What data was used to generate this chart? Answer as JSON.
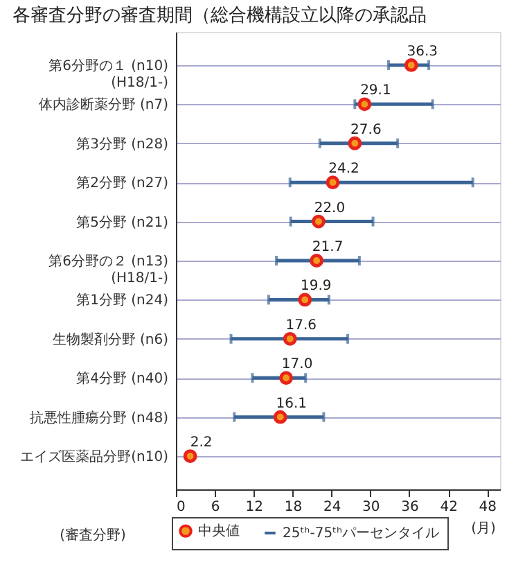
{
  "chart_data": {
    "type": "scatter",
    "title": "各審査分野の審査期間（総合機構設立以降の承認品",
    "categories": [
      "第6分野の１ (n10)\n(H18/1-)",
      "体内診断薬分野 (n7)",
      "第3分野 (n28)",
      "第2分野 (n27)",
      "第5分野 (n21)",
      "第6分野の２ (n13)\n(H18/1-)",
      "第1分野 (n24)",
      "生物製剤分野 (n6)",
      "第4分野 (n40)",
      "抗悪性腫瘍分野 (n48)",
      "エイズ医薬品分野(n10)"
    ],
    "orientation": "horizontal",
    "series": [
      {
        "name": "中央値",
        "color": "#e8231b",
        "values": [
          36.3,
          29.1,
          27.6,
          24.2,
          22.0,
          21.7,
          19.9,
          17.6,
          17.0,
          16.1,
          2.2
        ],
        "value_labels": [
          "36.3",
          "29.1",
          "27.6",
          "24.2",
          "22.0",
          "21.7",
          "19.9",
          "17.6",
          "17.0",
          "16.1",
          "2.2"
        ],
        "errors": [
          [
            32.8,
            39.0
          ],
          [
            27.6,
            39.6
          ],
          [
            22.2,
            34.2
          ],
          [
            17.6,
            45.8
          ],
          [
            17.7,
            30.4
          ],
          [
            15.5,
            28.3
          ],
          [
            14.3,
            23.6
          ],
          [
            8.5,
            26.5
          ],
          [
            11.8,
            20.0
          ],
          [
            9.0,
            22.8
          ],
          null
        ]
      }
    ],
    "annotations": [
      "25ᵗʰ-75ᵗʰパーセンタイル"
    ],
    "xlabel": "(月)",
    "ylabel": "(審査分野)",
    "xlim": [
      0,
      50
    ],
    "xticks": [
      0,
      6,
      12,
      18,
      24,
      30,
      36,
      42,
      48
    ],
    "grid": "y",
    "legend": "bottom",
    "marker": "circle"
  }
}
